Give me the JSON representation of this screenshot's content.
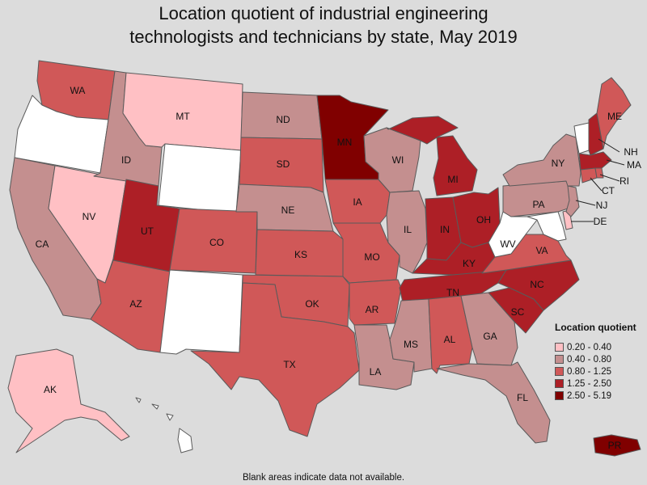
{
  "title_line1": "Location quotient of industrial engineering",
  "title_line2": "technologists and technicians by state, May 2019",
  "footnote": "Blank areas indicate data not available.",
  "legend": {
    "title": "Location quotient",
    "items": [
      {
        "label": "0.20 - 0.40",
        "color": "#ffc0c4"
      },
      {
        "label": "0.40 - 0.80",
        "color": "#c48f8f"
      },
      {
        "label": "0.80 - 1.25",
        "color": "#d05858"
      },
      {
        "label": "1.25 - 2.50",
        "color": "#ad1f26"
      },
      {
        "label": "2.50 - 5.19",
        "color": "#800000"
      }
    ]
  },
  "colors": {
    "nodata": "#ffffff",
    "c1": "#ffc0c4",
    "c2": "#c48f8f",
    "c3": "#d05858",
    "c4": "#ad1f26",
    "c5": "#800000"
  },
  "states": {
    "WA": "c3",
    "OR": "nodata",
    "CA": "c2",
    "ID": "c2",
    "NV": "c1",
    "MT": "c1",
    "WY": "nodata",
    "UT": "c4",
    "AZ": "c3",
    "CO": "c3",
    "NM": "nodata",
    "ND": "c2",
    "SD": "c3",
    "NE": "c2",
    "KS": "c3",
    "OK": "c3",
    "TX": "c3",
    "MN": "c5",
    "IA": "c3",
    "MO": "c3",
    "AR": "c3",
    "LA": "c2",
    "WI": "c2",
    "IL": "c2",
    "MI": "c4",
    "IN": "c4",
    "OH": "c4",
    "KY": "c4",
    "TN": "c4",
    "MS": "c2",
    "AL": "c3",
    "GA": "c2",
    "FL": "c2",
    "SC": "c4",
    "NC": "c4",
    "VA": "c3",
    "WV": "nodata",
    "PA": "c2",
    "NY": "c2",
    "ME": "c3",
    "VT": "nodata",
    "NH": "c4",
    "MA": "c4",
    "RI": "c3",
    "CT": "c3",
    "NJ": "c2",
    "DE": "c1",
    "MD": "nodata",
    "AK": "c1",
    "HI": "nodata",
    "PR": "c5"
  }
}
